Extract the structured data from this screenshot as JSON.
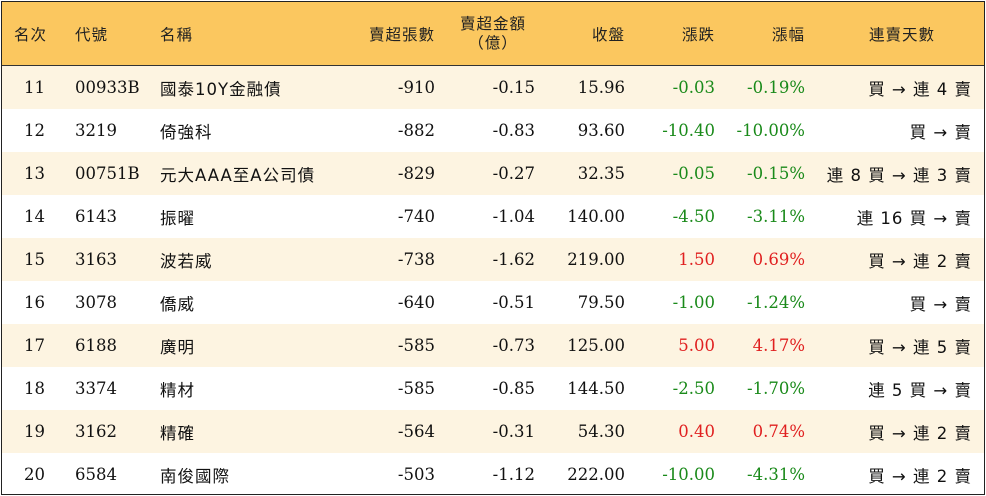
{
  "headers": {
    "rank": "名次",
    "code": "代號",
    "name": "名稱",
    "net_sell_shares": "賣超張數",
    "net_sell_amount_line1": "賣超金額",
    "net_sell_amount_line2": "（億）",
    "close": "收盤",
    "change": "漲跌",
    "change_pct": "漲幅",
    "streak": "連賣天數"
  },
  "rows": [
    {
      "rank": "11",
      "code": "00933B",
      "name": "國泰10Y金融債",
      "shares": "-910",
      "amount": "-0.15",
      "close": "15.96",
      "change": "-0.03",
      "pct": "-0.19%",
      "streak": "買 → 連 4 賣",
      "trend": "down"
    },
    {
      "rank": "12",
      "code": "3219",
      "name": "倚強科",
      "shares": "-882",
      "amount": "-0.83",
      "close": "93.60",
      "change": "-10.40",
      "pct": "-10.00%",
      "streak": "買 → 賣",
      "trend": "down"
    },
    {
      "rank": "13",
      "code": "00751B",
      "name": "元大AAA至A公司債",
      "shares": "-829",
      "amount": "-0.27",
      "close": "32.35",
      "change": "-0.05",
      "pct": "-0.15%",
      "streak": "連 8 買 → 連 3 賣",
      "trend": "down"
    },
    {
      "rank": "14",
      "code": "6143",
      "name": "振曜",
      "shares": "-740",
      "amount": "-1.04",
      "close": "140.00",
      "change": "-4.50",
      "pct": "-3.11%",
      "streak": "連 16 買 → 賣",
      "trend": "down"
    },
    {
      "rank": "15",
      "code": "3163",
      "name": "波若威",
      "shares": "-738",
      "amount": "-1.62",
      "close": "219.00",
      "change": "1.50",
      "pct": "0.69%",
      "streak": "買 → 連 2 賣",
      "trend": "up"
    },
    {
      "rank": "16",
      "code": "3078",
      "name": "僑威",
      "shares": "-640",
      "amount": "-0.51",
      "close": "79.50",
      "change": "-1.00",
      "pct": "-1.24%",
      "streak": "買 → 賣",
      "trend": "down"
    },
    {
      "rank": "17",
      "code": "6188",
      "name": "廣明",
      "shares": "-585",
      "amount": "-0.73",
      "close": "125.00",
      "change": "5.00",
      "pct": "4.17%",
      "streak": "買 → 連 5 賣",
      "trend": "up"
    },
    {
      "rank": "18",
      "code": "3374",
      "name": "精材",
      "shares": "-585",
      "amount": "-0.85",
      "close": "144.50",
      "change": "-2.50",
      "pct": "-1.70%",
      "streak": "連 5 買 → 賣",
      "trend": "down"
    },
    {
      "rank": "19",
      "code": "3162",
      "name": "精確",
      "shares": "-564",
      "amount": "-0.31",
      "close": "54.30",
      "change": "0.40",
      "pct": "0.74%",
      "streak": "買 → 連 2 賣",
      "trend": "up"
    },
    {
      "rank": "20",
      "code": "6584",
      "name": "南俊國際",
      "shares": "-503",
      "amount": "-1.12",
      "close": "222.00",
      "change": "-10.00",
      "pct": "-4.31%",
      "streak": "買 → 連 2 賣",
      "trend": "down"
    }
  ],
  "colors": {
    "header_bg": "#fbc75f",
    "zebra_bg": "#fdf4e1",
    "up": "#e02020",
    "down": "#1a8a1a"
  }
}
